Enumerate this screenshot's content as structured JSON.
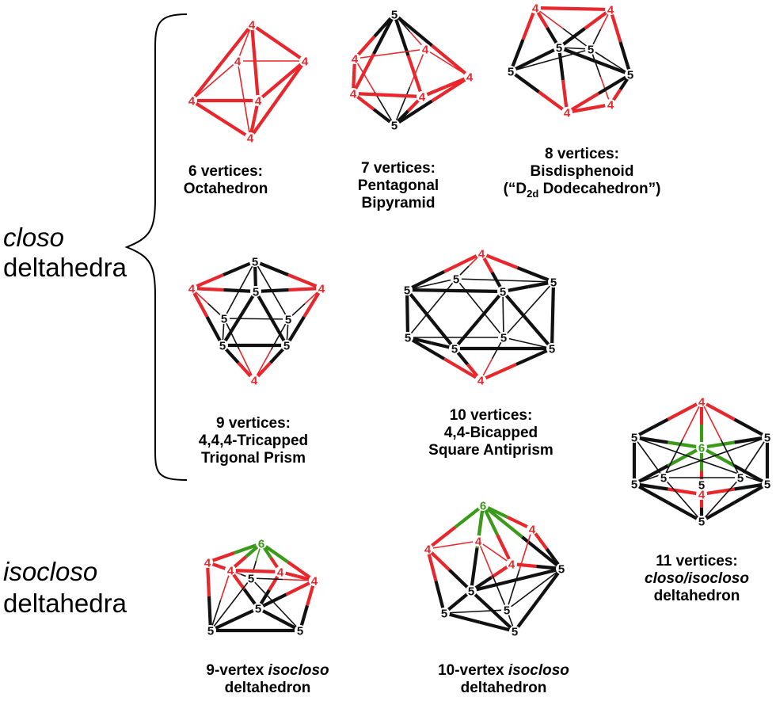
{
  "colors": {
    "red": "#e8262b",
    "black": "#111111",
    "green": "#3a9a1a"
  },
  "groups": {
    "closo_word": "closo",
    "closo_rest": "deltahedra",
    "isocloso_word": "isocloso",
    "isocloso_rest": "deltahedra"
  },
  "captions": {
    "v6": {
      "l1": "6 vertices:",
      "l2": "Octahedron"
    },
    "v7": {
      "l1": "7 vertices:",
      "l2": "Pentagonal",
      "l3": "Bipyramid"
    },
    "v8": {
      "l1": "8 vertices:",
      "l2": "Bisdisphenoid",
      "l3a": "(“D",
      "l3sub": "2d",
      "l3b": " Dodecahedron”)"
    },
    "v9": {
      "l1": "9 vertices:",
      "l2": "4,4,4-Tricapped",
      "l3": "Trigonal Prism"
    },
    "v10": {
      "l1": "10 vertices:",
      "l2": "4,4-Bicapped",
      "l3": "Square Antiprism"
    },
    "v11": {
      "l1": "11 vertices:",
      "l2a": "closo",
      "l2b": "/",
      "l2c": "isocloso",
      "l3": "deltahedron"
    },
    "iso9": {
      "l1a": "9-vertex ",
      "l1b": "isocloso",
      "l2": "deltahedron"
    },
    "iso10": {
      "l1a": "10-vertex ",
      "l1b": "isocloso",
      "l2": "deltahedron"
    }
  },
  "polyhedra": {
    "octa": {
      "vertex_labels": [
        "4",
        "4",
        "4",
        "4",
        "4",
        "4"
      ]
    },
    "pbp": {
      "vertex_labels": [
        "5",
        "4",
        "4",
        "4",
        "4",
        "4",
        "5"
      ]
    },
    "bisd": {
      "vertex_labels": [
        "4",
        "4",
        "5",
        "5",
        "5",
        "5",
        "4",
        "4"
      ]
    },
    "ttp": {
      "vertex_labels": [
        "5",
        "5",
        "4",
        "4",
        "5",
        "5",
        "5",
        "5",
        "4"
      ]
    },
    "bsa": {
      "vertex_labels": [
        "4",
        "5",
        "5",
        "5",
        "5",
        "5",
        "5",
        "5",
        "5",
        "4"
      ]
    },
    "v11": {
      "vertex_labels": [
        "4",
        "5",
        "5",
        "6",
        "5",
        "5",
        "5",
        "4",
        "5",
        "5",
        "5"
      ]
    },
    "iso9": {
      "vertex_labels": [
        "6",
        "4",
        "4",
        "4",
        "4",
        "5",
        "5",
        "5",
        "5"
      ]
    },
    "iso10": {
      "vertex_labels": [
        "6",
        "4",
        "4",
        "4",
        "4",
        "5",
        "5",
        "5",
        "5",
        "5"
      ]
    }
  }
}
